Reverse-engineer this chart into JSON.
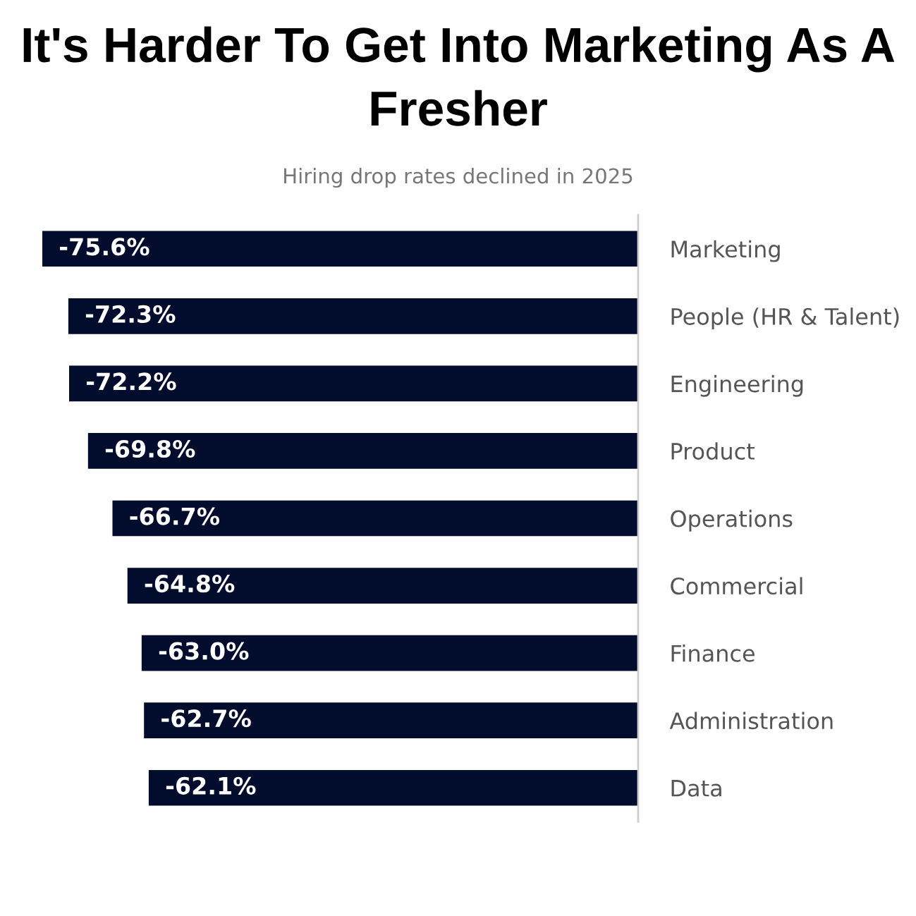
{
  "chart_data": {
    "type": "bar",
    "orientation": "horizontal",
    "title": "It's Harder To Get Into Marketing As A Fresher",
    "subtitle": "Hiring drop rates declined in 2025",
    "categories": [
      "Marketing",
      "People (HR & Talent)",
      "Engineering",
      "Product",
      "Operations",
      "Commercial",
      "Finance",
      "Administration",
      "Data"
    ],
    "values": [
      -75.6,
      -72.3,
      -72.2,
      -69.8,
      -66.7,
      -64.8,
      -63.0,
      -62.7,
      -62.1
    ],
    "value_labels": [
      "-75.6%",
      "-72.3%",
      "-72.2%",
      "-69.8%",
      "-66.7%",
      "-64.8%",
      "-63.0%",
      "-62.7%",
      "-62.1%"
    ],
    "color": "#020d2e",
    "xlim": [
      -75.6,
      0
    ],
    "tick_labels": "y",
    "grid": false,
    "legend": false
  }
}
